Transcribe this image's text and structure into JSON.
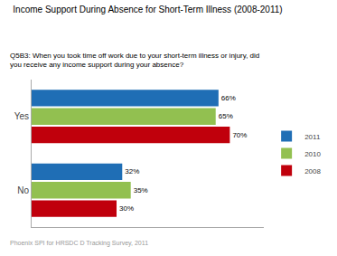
{
  "chart_data": {
    "type": "bar",
    "orientation": "horizontal",
    "title": "Income Support During Absence for Short-Term Illness (2008-2011)",
    "subtitle": "Q5B3: When you took time off work due to your short-term illness or injury, did\nyou receive any income support during your absence?",
    "annotations": [
      "Phoenix SPI for HRSDC D Tracking Survey, 2011"
    ],
    "categories": [
      "Yes",
      "No"
    ],
    "series": [
      {
        "name": "2011",
        "color": "#1F6EB5",
        "values": [
          66,
          32
        ],
        "value_labels": [
          "66%",
          "32%"
        ]
      },
      {
        "name": "2010",
        "color": "#92C050",
        "values": [
          65,
          35
        ],
        "value_labels": [
          "65%",
          "35%"
        ]
      },
      {
        "name": "2008",
        "color": "#C0000C",
        "values": [
          70,
          30
        ],
        "value_labels": [
          "70%",
          "30%"
        ]
      }
    ],
    "xlim": [
      0,
      82
    ],
    "tick_labels": "y",
    "data_labels": true,
    "legend": "right",
    "grid": false
  }
}
